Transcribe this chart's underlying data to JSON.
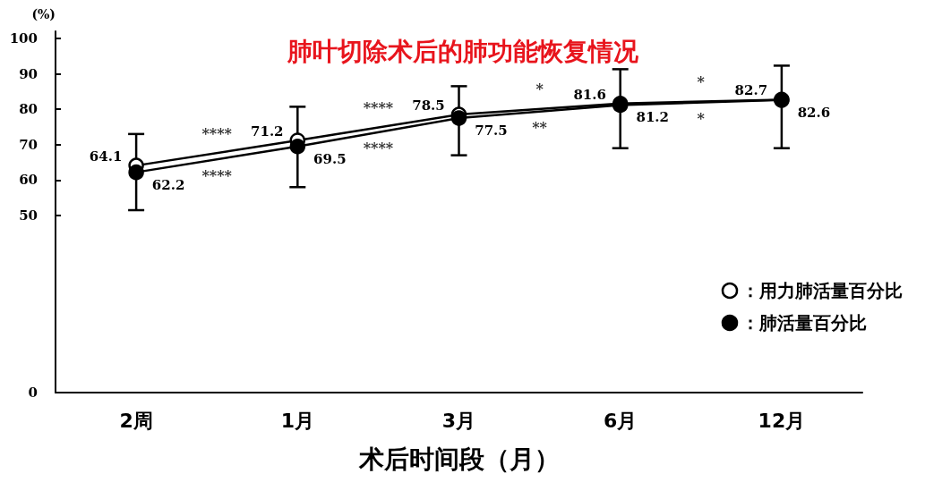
{
  "chart_data": {
    "type": "line",
    "title": "肺叶切除术后的肺功能恢复情况",
    "xlabel": "术后时间段（月）",
    "ylabel": "(%)",
    "categories": [
      "2周",
      "1月",
      "3月",
      "6月",
      "12月"
    ],
    "series": [
      {
        "name": "：用力肺活量百分比",
        "color": "#ffffff",
        "values": [
          64.1,
          71.2,
          78.5,
          81.6,
          82.7
        ]
      },
      {
        "name": "：肺活量百分比",
        "color": "#000000",
        "values": [
          62.2,
          69.5,
          77.5,
          81.2,
          82.6
        ],
        "errors": [
          [
            51.5,
            73
          ],
          [
            58,
            80.7
          ],
          [
            67,
            86.5
          ],
          [
            69,
            91.3
          ],
          [
            69,
            92.3
          ]
        ]
      }
    ],
    "ylim": [
      0,
      102
    ],
    "yticks": [
      0,
      50,
      60,
      70,
      80,
      90,
      100
    ],
    "annotations": [
      "****",
      "****",
      "****",
      "****",
      "*",
      "**",
      "*",
      "*"
    ],
    "data_labels": true,
    "marker": "circle",
    "line_style": "solid",
    "grid": false,
    "legend": "bottom right"
  }
}
